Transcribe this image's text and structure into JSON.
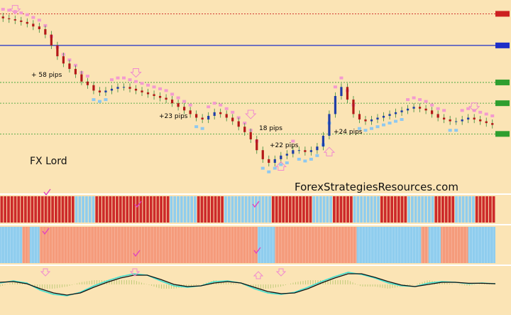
{
  "chart_data": {
    "type": "candlestick",
    "grid": false,
    "colors": {
      "background": "#fbe4b5",
      "bull": "#1f3ea8",
      "bear": "#b41818",
      "trail_up": "#8ec8f0",
      "trail_down": "#f39acf",
      "hist_red": "#cd2a2a",
      "hist_blue": "#8fcdee",
      "hist_salmon": "#f59b7b",
      "osc_fast": "#40e0d0",
      "osc_slow": "#111111",
      "arrow": "#f08ad0",
      "check": "#e040c0"
    },
    "annotations": [
      {
        "text": "+ 58 pips"
      },
      {
        "text": "+23 pips"
      },
      {
        "text": "18 pips"
      },
      {
        "text": "+22 pips"
      },
      {
        "text": "+24 pips"
      }
    ],
    "brand": "FX Lord",
    "watermark": "ForexStrategiesResources.com",
    "price_tags": [
      {
        "color": "#cc2020",
        "level": 0.955
      },
      {
        "color": "#1d2fc8",
        "level": 0.78
      },
      {
        "color": "#2f9e2f",
        "level": 0.575
      },
      {
        "color": "#2f9e2f",
        "level": 0.46
      },
      {
        "color": "#2f9e2f",
        "level": 0.29
      }
    ],
    "price_close": [
      0.93,
      0.925,
      0.918,
      0.91,
      0.9,
      0.885,
      0.87,
      0.84,
      0.78,
      0.72,
      0.68,
      0.65,
      0.62,
      0.58,
      0.56,
      0.53,
      0.52,
      0.53,
      0.54,
      0.55,
      0.55,
      0.54,
      0.53,
      0.52,
      0.51,
      0.5,
      0.49,
      0.48,
      0.46,
      0.44,
      0.42,
      0.4,
      0.38,
      0.37,
      0.39,
      0.41,
      0.4,
      0.38,
      0.36,
      0.33,
      0.3,
      0.26,
      0.2,
      0.15,
      0.13,
      0.15,
      0.17,
      0.18,
      0.2,
      0.2,
      0.19,
      0.2,
      0.22,
      0.28,
      0.4,
      0.5,
      0.55,
      0.48,
      0.4,
      0.37,
      0.36,
      0.37,
      0.38,
      0.39,
      0.4,
      0.41,
      0.42,
      0.43,
      0.44,
      0.43,
      0.42,
      0.4,
      0.38,
      0.37,
      0.36,
      0.36,
      0.37,
      0.38,
      0.37,
      0.36,
      0.35,
      0.34
    ],
    "indicator_red_blue": [
      "r",
      "r",
      "r",
      "r",
      "r",
      "r",
      "r",
      "r",
      "r",
      "r",
      "r",
      "r",
      "r",
      "r",
      "r",
      "r",
      "r",
      "r",
      "r",
      "r",
      "r",
      "r",
      "b",
      "b",
      "b",
      "b",
      "b",
      "b",
      "r",
      "r",
      "r",
      "r",
      "r",
      "r",
      "r",
      "r",
      "r",
      "r",
      "r",
      "r",
      "r",
      "r",
      "r",
      "r",
      "r",
      "r",
      "r",
      "r",
      "r",
      "r",
      "b",
      "b",
      "b",
      "b",
      "b",
      "b",
      "b",
      "b",
      "r",
      "r",
      "r",
      "r",
      "r",
      "r",
      "r",
      "r",
      "b",
      "b",
      "b",
      "b",
      "b",
      "b",
      "b",
      "b",
      "b",
      "b",
      "b",
      "b",
      "b",
      "b",
      "r",
      "r",
      "r",
      "r",
      "r",
      "r",
      "r",
      "r",
      "r",
      "r",
      "r",
      "r",
      "b",
      "b",
      "b",
      "b",
      "b",
      "b",
      "r",
      "r",
      "r",
      "r",
      "r",
      "r",
      "b",
      "b",
      "b",
      "b",
      "b",
      "b",
      "b",
      "b",
      "r",
      "r",
      "r",
      "r",
      "r",
      "r",
      "r",
      "r",
      "b",
      "b",
      "b",
      "b",
      "b",
      "b",
      "b",
      "b",
      "r",
      "r",
      "r",
      "r",
      "r",
      "r",
      "b",
      "b",
      "b",
      "b",
      "b",
      "b",
      "r",
      "r",
      "r",
      "r",
      "r",
      "r"
    ],
    "indicator_salmon_blue": [
      {
        "color": "b",
        "frac": 0.045
      },
      {
        "color": "s",
        "frac": 0.015
      },
      {
        "color": "b",
        "frac": 0.02
      },
      {
        "color": "s",
        "frac": 0.44
      },
      {
        "color": "b",
        "frac": 0.035
      },
      {
        "color": "s",
        "frac": 0.165
      },
      {
        "color": "b",
        "frac": 0.13
      },
      {
        "color": "s",
        "frac": 0.015
      },
      {
        "color": "b",
        "frac": 0.025
      },
      {
        "color": "s",
        "frac": 0.055
      },
      {
        "color": "b",
        "frac": 0.055
      }
    ],
    "oscillator_fast": [
      0.1,
      0.25,
      0.1,
      -0.4,
      -0.7,
      -0.8,
      -0.55,
      -0.1,
      0.25,
      0.55,
      0.75,
      0.65,
      0.25,
      -0.1,
      -0.2,
      -0.1,
      0.2,
      0.25,
      0.1,
      -0.3,
      -0.6,
      -0.7,
      -0.55,
      -0.2,
      0.2,
      0.55,
      0.85,
      0.7,
      0.45,
      0.1,
      -0.1,
      -0.15,
      0.1,
      0.2,
      0.15,
      0.05,
      0.1,
      0.05
    ],
    "oscillator_slow": [
      0.15,
      0.2,
      0.05,
      -0.3,
      -0.6,
      -0.75,
      -0.6,
      -0.2,
      0.15,
      0.45,
      0.65,
      0.65,
      0.35,
      0.0,
      -0.15,
      -0.1,
      0.1,
      0.2,
      0.1,
      -0.2,
      -0.5,
      -0.65,
      -0.6,
      -0.3,
      0.1,
      0.45,
      0.75,
      0.75,
      0.5,
      0.2,
      -0.05,
      -0.15,
      0.0,
      0.15,
      0.15,
      0.08,
      0.08,
      0.05
    ]
  }
}
